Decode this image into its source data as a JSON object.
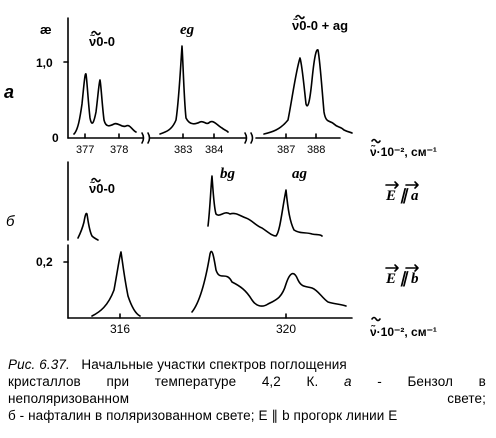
{
  "figure": {
    "panel_a_label": "а",
    "panel_b_label": "б",
    "panel_a": {
      "y_axis_symbol": "æ",
      "y_ticks": [
        "1,0",
        "0"
      ],
      "peak_labels": [
        "ν̃0-0",
        "eg",
        "ν̃0-0 + ag"
      ],
      "x_ticks": [
        "377",
        "378",
        "383",
        "384",
        "387",
        "388"
      ],
      "x_axis_label": "ν̃·10⁻², см⁻¹"
    },
    "panel_b": {
      "upper_peak_labels": [
        "ν̃0-0",
        "bg",
        "ag"
      ],
      "upper_polarization": "E ∥ a",
      "lower_polarization": "E ∥ b",
      "y_tick": "0,2",
      "x_ticks": [
        "316",
        "320"
      ],
      "x_axis_label": "ν̃·10⁻², см⁻¹"
    }
  },
  "caption": {
    "label": "Рис. 6.37.",
    "line1_rest": "Начальные участки спектров поглощения",
    "line2": [
      "кристаллов",
      "при",
      "температуре",
      "4,2",
      "К.",
      "а",
      "-",
      "Бензол",
      "в"
    ],
    "line3": [
      "неполяризованном",
      "свете;"
    ],
    "line4": "б - нафталин в поляризованном свете; E ∥ b прогорк линии E"
  },
  "chart_data": [
    {
      "type": "line",
      "panel": "а",
      "ylabel": "æ",
      "xlabel": "ν̃·10⁻², см⁻¹",
      "ylim": [
        0,
        1.25
      ],
      "segments": [
        {
          "xlim": [
            376.9,
            378.6
          ],
          "x": [
            376.9,
            377.1,
            377.25,
            377.3,
            377.35,
            377.5,
            377.55,
            377.6,
            377.7,
            378.0,
            378.3,
            378.6
          ],
          "y": [
            0.05,
            0.2,
            0.6,
            0.85,
            0.4,
            0.3,
            0.8,
            0.4,
            0.22,
            0.18,
            0.12,
            0.08
          ]
        },
        {
          "xlim": [
            382.6,
            384.4
          ],
          "x": [
            382.6,
            382.9,
            383.05,
            383.1,
            383.15,
            383.3,
            383.6,
            383.9,
            384.2,
            384.4
          ],
          "y": [
            0.1,
            0.15,
            0.55,
            1.1,
            0.5,
            0.25,
            0.3,
            0.22,
            0.12,
            0.08
          ]
        },
        {
          "xlim": [
            386.6,
            388.6
          ],
          "x": [
            386.6,
            386.9,
            387.1,
            387.2,
            387.3,
            387.4,
            387.5,
            387.6,
            387.7,
            388.0,
            388.3,
            388.6
          ],
          "y": [
            0.1,
            0.2,
            0.6,
            0.98,
            0.55,
            0.45,
            0.8,
            1.05,
            0.5,
            0.25,
            0.18,
            0.1
          ]
        }
      ]
    },
    {
      "type": "line",
      "panel": "б",
      "series": [
        {
          "polarization": "E ∥ a",
          "x": [
            314.6,
            315.0,
            315.1,
            315.2,
            315.4
          ],
          "y": [
            0.05,
            0.1,
            0.6,
            0.1,
            0.02
          ]
        },
        {
          "polarization": "E ∥ a",
          "x": [
            318.4,
            318.5,
            318.55,
            318.7,
            319.0,
            319.5,
            320.0,
            320.5,
            320.8,
            320.9,
            321.0,
            321.4,
            321.9
          ],
          "y": [
            0.2,
            1.0,
            0.45,
            0.4,
            0.5,
            0.45,
            0.35,
            0.2,
            0.4,
            0.85,
            0.3,
            0.15,
            0.1
          ]
        },
        {
          "polarization": "E ∥ b",
          "x": [
            315.2,
            315.7,
            315.9,
            316.0,
            316.1,
            316.5,
            317.0
          ],
          "y": [
            0.02,
            0.15,
            0.45,
            0.85,
            0.4,
            0.05,
            0.02
          ]
        },
        {
          "polarization": "E ∥ b",
          "x": [
            318.2,
            318.5,
            318.6,
            318.8,
            319.2,
            319.8,
            320.3,
            320.6,
            320.9,
            321.2,
            321.6,
            322.2
          ],
          "y": [
            0.1,
            0.4,
            0.9,
            0.45,
            0.4,
            0.25,
            0.12,
            0.2,
            0.5,
            0.3,
            0.2,
            0.12
          ]
        }
      ],
      "x_ticks": [
        316,
        320
      ],
      "xlabel": "ν̃·10⁻², см⁻¹"
    }
  ]
}
